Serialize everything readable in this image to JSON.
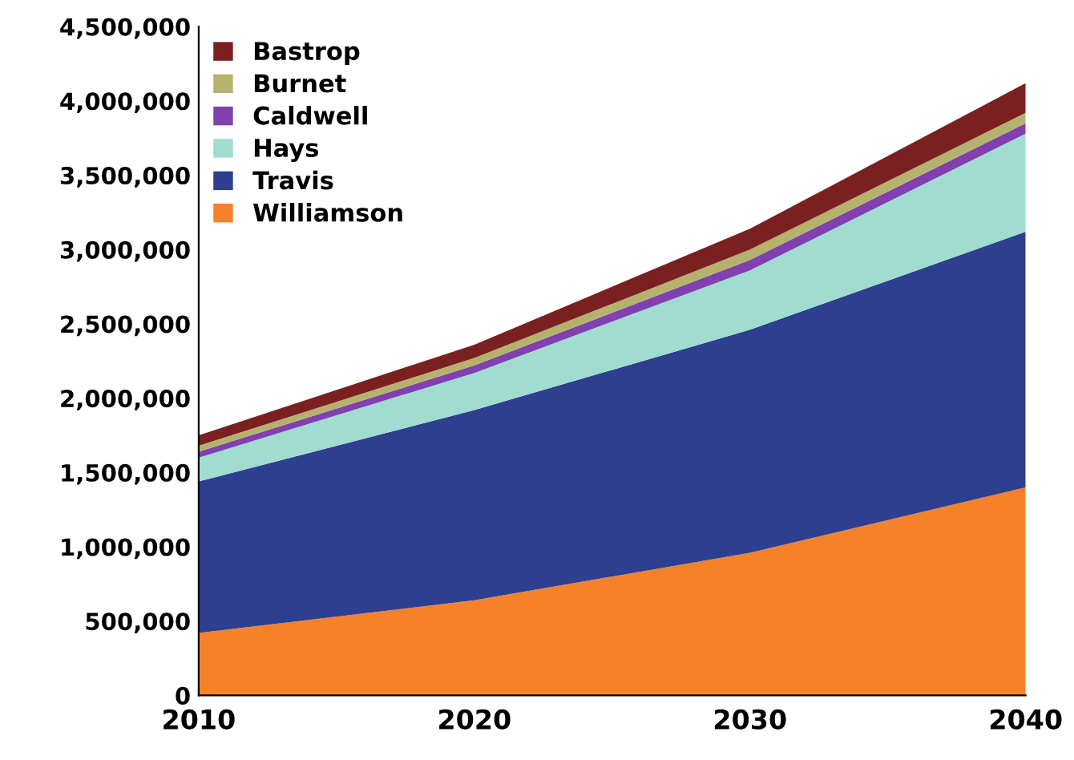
{
  "chart_data": {
    "type": "area",
    "stacked": true,
    "x": [
      2010,
      2020,
      2030,
      2040
    ],
    "series": [
      {
        "name": "Williamson",
        "color": "#f5822a",
        "values": [
          420000,
          640000,
          960000,
          1400000
        ]
      },
      {
        "name": "Travis",
        "color": "#2e3f8f",
        "values": [
          1020000,
          1280000,
          1500000,
          1720000
        ]
      },
      {
        "name": "Hays",
        "color": "#a0dccf",
        "values": [
          160000,
          250000,
          400000,
          660000
        ]
      },
      {
        "name": "Caldwell",
        "color": "#8040b0",
        "values": [
          40000,
          50000,
          70000,
          70000
        ]
      },
      {
        "name": "Burnet",
        "color": "#b5b26e",
        "values": [
          40000,
          50000,
          70000,
          70000
        ]
      },
      {
        "name": "Bastrop",
        "color": "#7b2020",
        "values": [
          70000,
          90000,
          140000,
          200000
        ]
      }
    ],
    "xlim": [
      2010,
      2040
    ],
    "xticks": [
      2010,
      2020,
      2030,
      2040
    ],
    "ylim": [
      0,
      4500000
    ],
    "yticks": [
      {
        "value": 0,
        "label": "0"
      },
      {
        "value": 500000,
        "label": "500,000"
      },
      {
        "value": 1000000,
        "label": "1,000,000"
      },
      {
        "value": 1500000,
        "label": "1,500,000"
      },
      {
        "value": 2000000,
        "label": "2,000,000"
      },
      {
        "value": 2500000,
        "label": "2,500,000"
      },
      {
        "value": 3000000,
        "label": "3,000,000"
      },
      {
        "value": 3500000,
        "label": "3,500,000"
      },
      {
        "value": 4000000,
        "label": "4,000,000"
      },
      {
        "value": 4500000,
        "label": "4,500,000"
      }
    ],
    "grid": false,
    "legend": "top left"
  }
}
